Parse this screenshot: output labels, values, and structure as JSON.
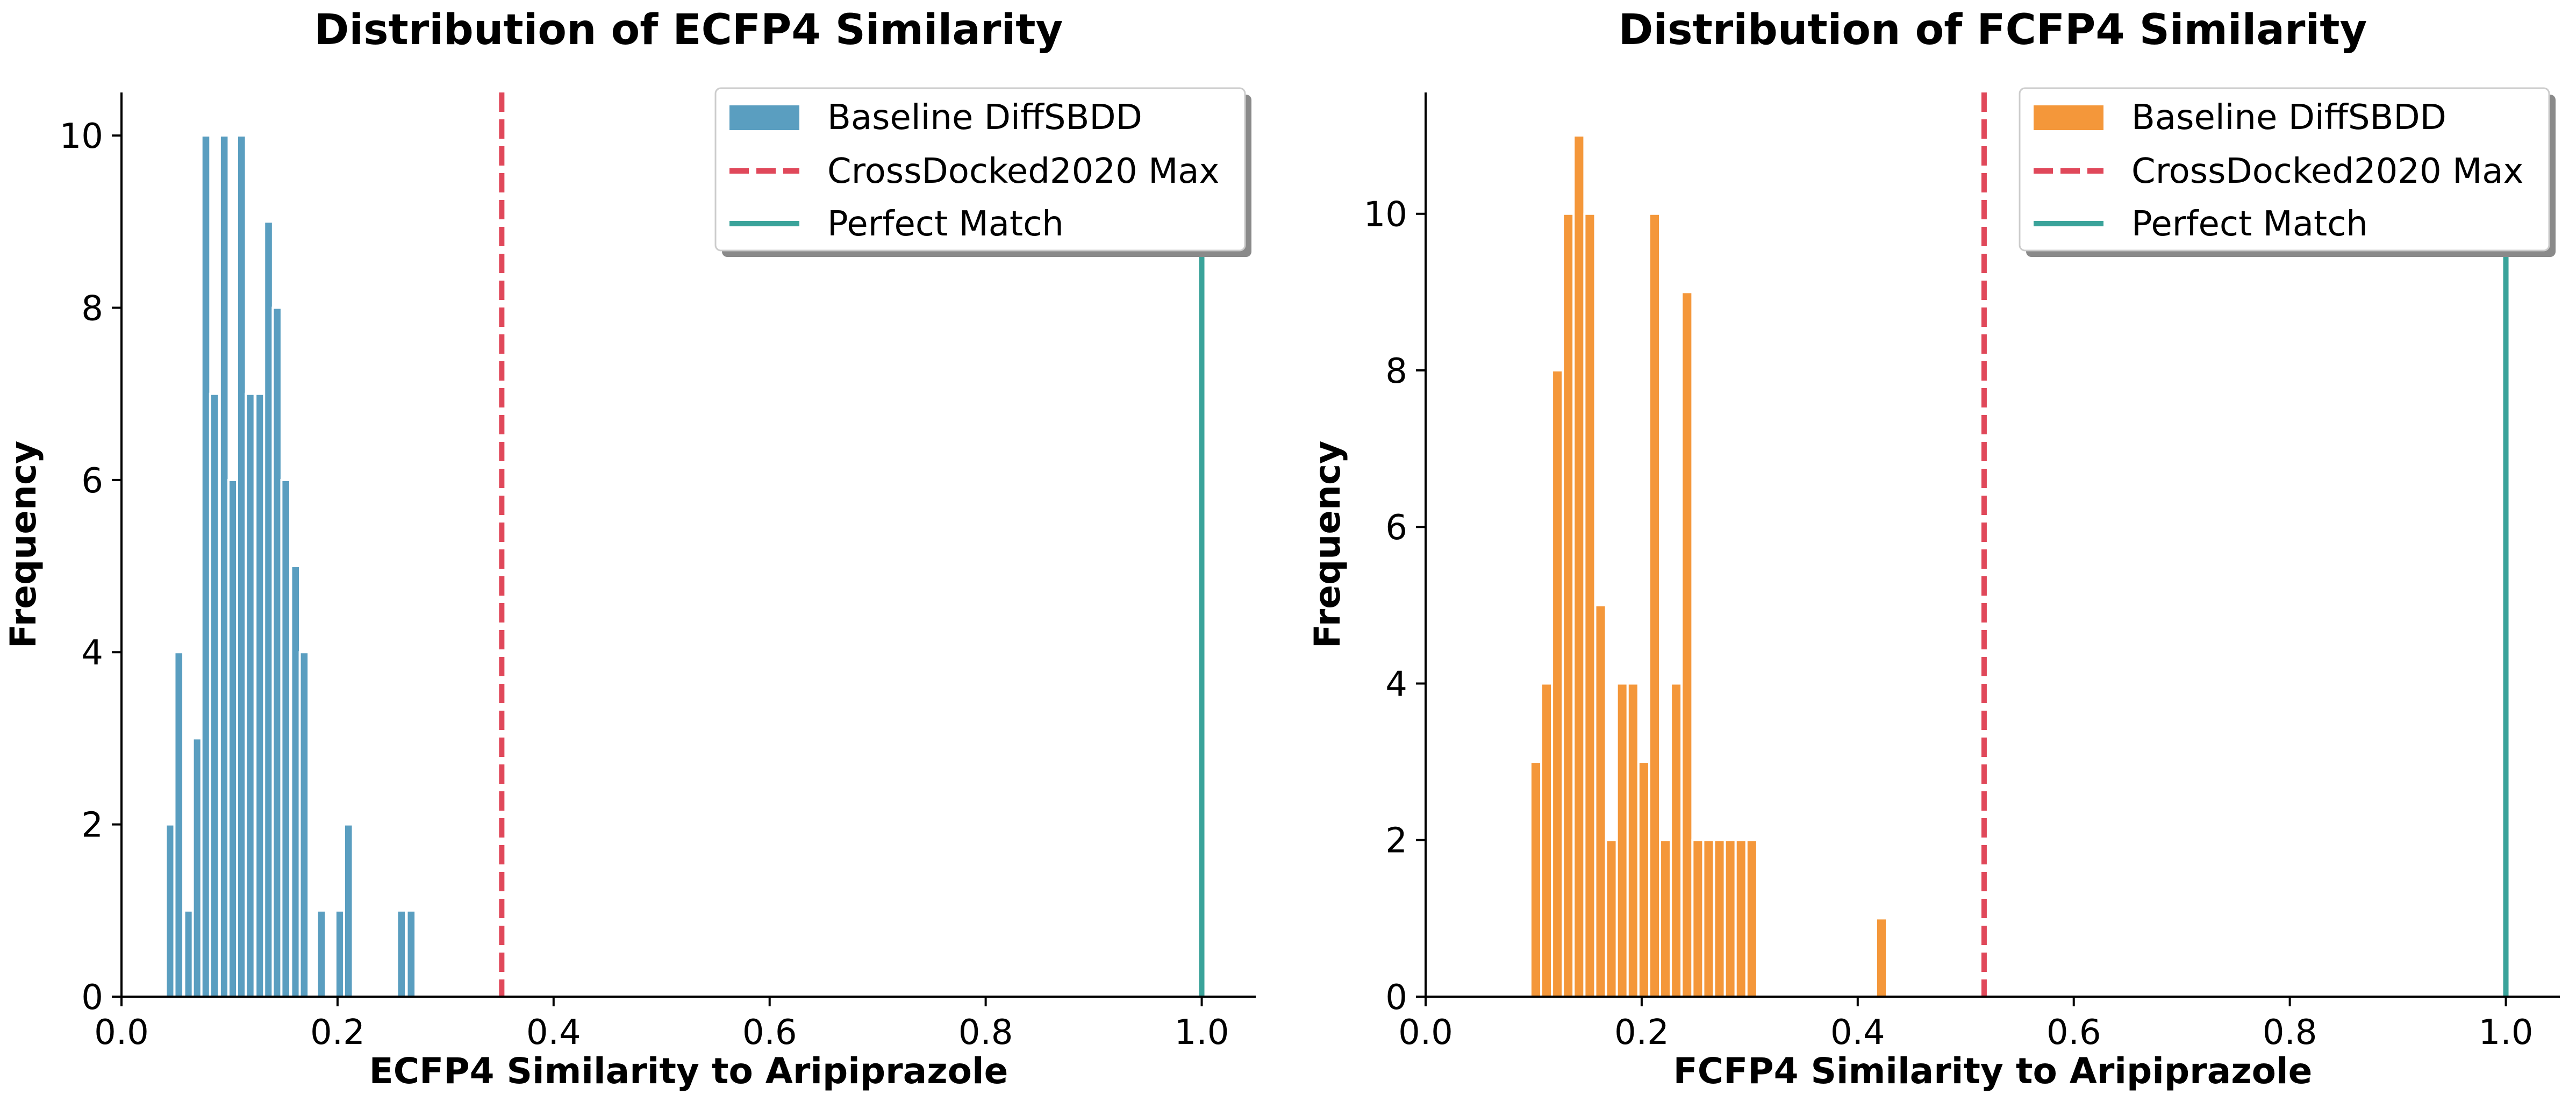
{
  "chart_data": [
    {
      "type": "bar",
      "title": "Distribution of ECFP4 Similarity",
      "xlabel": "ECFP4 Similarity to Aripiprazole",
      "ylabel": "Frequency",
      "xlim": [
        0.0,
        1.05
      ],
      "ylim": [
        0,
        10.5
      ],
      "xticks": [
        "0.0",
        "0.2",
        "0.4",
        "0.6",
        "0.8",
        "1.0"
      ],
      "yticks": [
        "0",
        "2",
        "4",
        "6",
        "8",
        "10"
      ],
      "bin_width": 0.00825,
      "series": [
        {
          "name": "Baseline DiffSBDD",
          "color": "#5a9ec0",
          "bins": [
            {
              "x": 0.041,
              "value": 2
            },
            {
              "x": 0.049,
              "value": 4
            },
            {
              "x": 0.058,
              "value": 1
            },
            {
              "x": 0.066,
              "value": 3
            },
            {
              "x": 0.074,
              "value": 10
            },
            {
              "x": 0.082,
              "value": 7
            },
            {
              "x": 0.091,
              "value": 10
            },
            {
              "x": 0.099,
              "value": 6
            },
            {
              "x": 0.107,
              "value": 10
            },
            {
              "x": 0.115,
              "value": 7
            },
            {
              "x": 0.124,
              "value": 7
            },
            {
              "x": 0.132,
              "value": 9
            },
            {
              "x": 0.14,
              "value": 8
            },
            {
              "x": 0.148,
              "value": 6
            },
            {
              "x": 0.157,
              "value": 5
            },
            {
              "x": 0.165,
              "value": 4
            },
            {
              "x": 0.181,
              "value": 1
            },
            {
              "x": 0.198,
              "value": 1
            },
            {
              "x": 0.206,
              "value": 2
            },
            {
              "x": 0.255,
              "value": 1
            },
            {
              "x": 0.264,
              "value": 1
            }
          ]
        }
      ],
      "reference_lines": [
        {
          "name": "CrossDocked2020 Max",
          "x": 0.352,
          "style": "dashed",
          "color": "#e0485a"
        },
        {
          "name": "Perfect Match",
          "x": 1.0,
          "style": "solid",
          "color": "#3aa39a"
        }
      ],
      "legend": {
        "position": "top-right",
        "labels": [
          "Baseline DiffSBDD",
          "CrossDocked2020 Max",
          "Perfect Match"
        ]
      },
      "grid": false
    },
    {
      "type": "bar",
      "title": "Distribution of FCFP4 Similarity",
      "xlabel": "FCFP4 Similarity to Aripiprazole",
      "ylabel": "Frequency",
      "xlim": [
        0.0,
        1.05
      ],
      "ylim": [
        0,
        11.55
      ],
      "xticks": [
        "0.0",
        "0.2",
        "0.4",
        "0.6",
        "0.8",
        "1.0"
      ],
      "yticks": [
        "0",
        "2",
        "4",
        "6",
        "8",
        "10"
      ],
      "bin_width": 0.01,
      "series": [
        {
          "name": "Baseline DiffSBDD",
          "color": "#f4973a",
          "bins": [
            {
              "x": 0.097,
              "value": 3
            },
            {
              "x": 0.107,
              "value": 4
            },
            {
              "x": 0.117,
              "value": 8
            },
            {
              "x": 0.127,
              "value": 10
            },
            {
              "x": 0.137,
              "value": 11
            },
            {
              "x": 0.147,
              "value": 10
            },
            {
              "x": 0.157,
              "value": 5
            },
            {
              "x": 0.167,
              "value": 2
            },
            {
              "x": 0.177,
              "value": 4
            },
            {
              "x": 0.187,
              "value": 4
            },
            {
              "x": 0.197,
              "value": 3
            },
            {
              "x": 0.207,
              "value": 10
            },
            {
              "x": 0.217,
              "value": 2
            },
            {
              "x": 0.227,
              "value": 4
            },
            {
              "x": 0.237,
              "value": 9
            },
            {
              "x": 0.247,
              "value": 2
            },
            {
              "x": 0.257,
              "value": 2
            },
            {
              "x": 0.267,
              "value": 2
            },
            {
              "x": 0.277,
              "value": 2
            },
            {
              "x": 0.287,
              "value": 2
            },
            {
              "x": 0.297,
              "value": 2
            },
            {
              "x": 0.417,
              "value": 1
            }
          ]
        }
      ],
      "reference_lines": [
        {
          "name": "CrossDocked2020 Max",
          "x": 0.517,
          "style": "dashed",
          "color": "#e0485a"
        },
        {
          "name": "Perfect Match",
          "x": 1.0,
          "style": "solid",
          "color": "#3aa39a"
        }
      ],
      "legend": {
        "position": "top-right",
        "labels": [
          "Baseline DiffSBDD",
          "CrossDocked2020 Max",
          "Perfect Match"
        ]
      },
      "grid": false
    }
  ]
}
